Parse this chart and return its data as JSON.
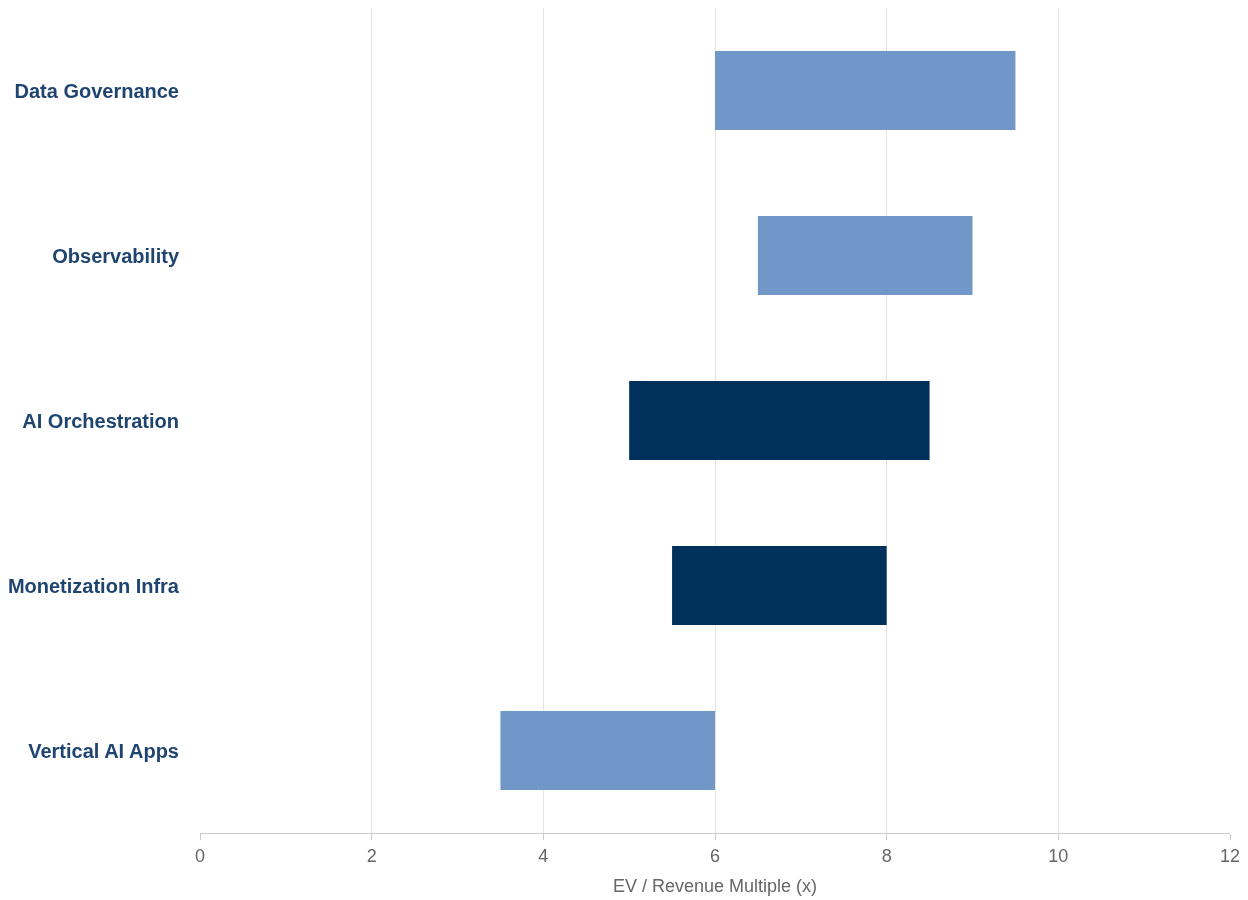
{
  "chart_data": {
    "type": "bar",
    "orientation": "horizontal",
    "xlabel": "EV / Revenue Multiple (x)",
    "categories": [
      "Data Governance",
      "Observability",
      "AI Orchestration",
      "Monetization Infra",
      "Vertical AI Apps"
    ],
    "base": [
      6,
      6.5,
      5,
      5.5,
      3.5
    ],
    "values": [
      3.5,
      2.5,
      3.5,
      2.5,
      2.5
    ],
    "colors": [
      "#7097c7",
      "#7097c7",
      "#00305c",
      "#00305c",
      "#7097c7"
    ],
    "xlim": [
      0,
      12
    ],
    "xticks": [
      0,
      2,
      4,
      6,
      8,
      10,
      12
    ],
    "grid": "x"
  }
}
